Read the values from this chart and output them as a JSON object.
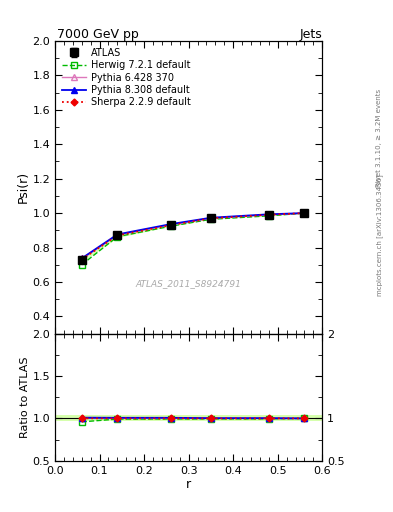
{
  "title_left": "7000 GeV pp",
  "title_right": "Jets",
  "right_label_main": "Rivet 3.1.10, ≥ 3.2M events",
  "right_label_mid": "mcplots.cern.ch [arXiv:1306.3436]",
  "watermark": "ATLAS_2011_S8924791",
  "ylabel_main": "Psi(r)",
  "ylabel_ratio": "Ratio to ATLAS",
  "xlabel": "r",
  "xlim": [
    0,
    0.6
  ],
  "ylim_main": [
    0.3,
    2.0
  ],
  "ylim_ratio": [
    0.5,
    2.0
  ],
  "x": [
    0.06,
    0.14,
    0.26,
    0.35,
    0.48,
    0.56
  ],
  "atlas_y": [
    0.73,
    0.87,
    0.93,
    0.97,
    0.99,
    1.0
  ],
  "atlas_yerr": [
    0.015,
    0.012,
    0.006,
    0.005,
    0.004,
    0.004
  ],
  "herwig_y": [
    0.7,
    0.863,
    0.924,
    0.964,
    0.984,
    1.0
  ],
  "pythia6_y": [
    0.733,
    0.872,
    0.932,
    0.97,
    0.99,
    1.0
  ],
  "pythia8_y": [
    0.737,
    0.876,
    0.936,
    0.973,
    0.993,
    1.0
  ],
  "sherpa_y": [
    0.731,
    0.87,
    0.93,
    0.97,
    0.99,
    1.0
  ],
  "herwig_ratio": [
    0.959,
    0.992,
    0.993,
    0.994,
    0.994,
    1.0
  ],
  "pythia6_ratio": [
    1.004,
    1.002,
    1.002,
    1.0,
    1.0,
    1.0
  ],
  "pythia8_ratio": [
    1.009,
    1.007,
    1.007,
    1.003,
    1.003,
    1.0
  ],
  "sherpa_ratio": [
    1.001,
    1.0,
    1.0,
    1.0,
    1.0,
    1.0
  ],
  "atlas_color": "#000000",
  "herwig_color": "#00bb00",
  "pythia6_color": "#dd77bb",
  "pythia8_color": "#0000ee",
  "sherpa_color": "#ee0000",
  "atlas_band_color": "#ccff99",
  "atlas_band_alpha": 0.8,
  "legend_labels": [
    "ATLAS",
    "Herwig 7.2.1 default",
    "Pythia 6.428 370",
    "Pythia 8.308 default",
    "Sherpa 2.2.9 default"
  ],
  "yticks_main": [
    0.4,
    0.6,
    0.8,
    1.0,
    1.2,
    1.4,
    1.6,
    1.8,
    2.0
  ],
  "yticks_ratio": [
    0.5,
    1.0,
    1.5,
    2.0
  ],
  "xticks": [
    0.0,
    0.1,
    0.2,
    0.3,
    0.4,
    0.5,
    0.6
  ]
}
